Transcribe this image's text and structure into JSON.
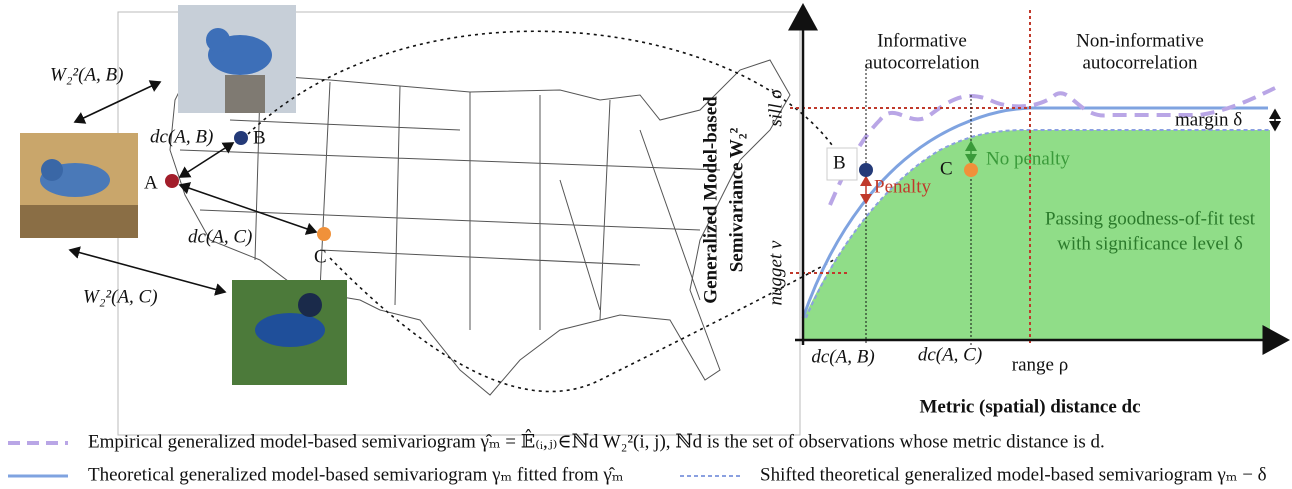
{
  "map": {
    "w_ab": "W₂²(A, B)",
    "dc_ab": "dc(A, B)",
    "point_b": "B",
    "point_a": "A",
    "dc_ac": "dc(A, C)",
    "point_c": "C",
    "w_ac": "W₂²(A, C)"
  },
  "chart": {
    "y_axis_label": [
      "Generalized Model-based",
      "Semivariance W₂²"
    ],
    "x_axis_label": "Metric (spatial) distance dc",
    "informative": [
      "Informative",
      "autocorrelation"
    ],
    "non_informative": [
      "Non-informative",
      "autocorrelation"
    ],
    "sill": "sill σ",
    "nugget": "nugget ν",
    "margin": "margin δ",
    "point_b": "B",
    "point_c": "C",
    "penalty": "Penalty",
    "no_penalty": "No penalty",
    "passing": [
      "Passing goodness-of-fit test",
      "with significance level δ"
    ],
    "dc_ab": "dc(A, B)",
    "dc_ac": "dc(A, C)",
    "range": "range ρ"
  },
  "legend": {
    "empirical": "Empirical generalized model-based semivariogram γ̂ₘ = 𝔼̂₍ᵢ,ⱼ₎∈ℕd W₂²(i, j), ℕd is the set of observations whose metric distance is d.",
    "theoretical": "Theoretical generalized model-based semivariogram γₘ fitted from γ̂ₘ",
    "shifted": "Shifted theoretical generalized model-based semivariogram γₘ − δ"
  }
}
